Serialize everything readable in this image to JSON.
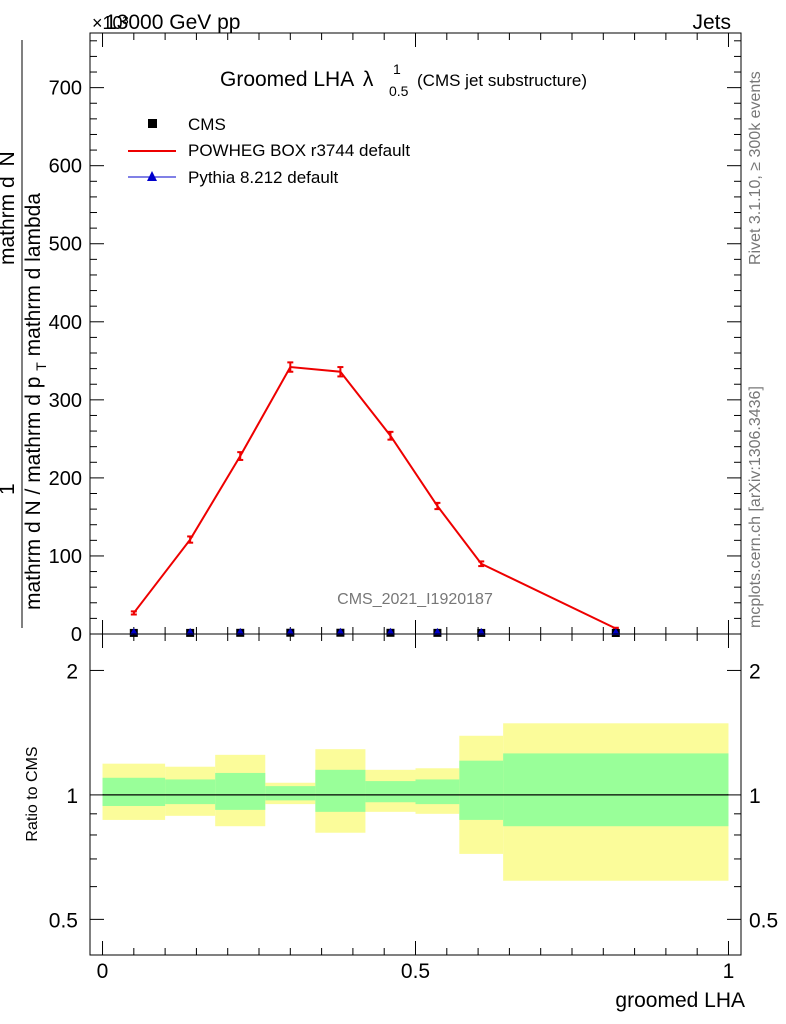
{
  "header": {
    "energy": "13000 GeV pp",
    "category": "Jets",
    "exponent": "×10³"
  },
  "chart_data": [
    {
      "type": "line",
      "title": "Groomed LHA",
      "title_symbol": "λ",
      "title_sup": "1",
      "title_sub": "0.5",
      "title_suffix": "(CMS jet substructure)",
      "xlabel": "groomed LHA",
      "ylabel_parts": [
        "1",
        "mathrm d N / mathrm d p",
        "T",
        " mathrm d lambda",
        "mathrm d",
        "N"
      ],
      "ylabel_full": "1/(mathrm d N / mathrm d p_T) mathrm d^2N / mathrm d p_T mathrm d lambda",
      "x_ticks": [
        "0",
        "0.5",
        "1"
      ],
      "y_ticks": [
        "0",
        "100",
        "200",
        "300",
        "400",
        "500",
        "600",
        "700"
      ],
      "xlim": [
        -0.02,
        1.02
      ],
      "ylim": [
        0,
        770
      ],
      "watermark": "CMS_2021_I1920187",
      "legend": [
        {
          "label": "CMS",
          "color": "#000000",
          "marker": "square"
        },
        {
          "label": "POWHEG BOX r3744 default",
          "color": "#ee0000",
          "marker": "line"
        },
        {
          "label": "Pythia 8.212 default",
          "color": "#0000cc",
          "marker": "triangle"
        }
      ],
      "series": [
        {
          "name": "POWHEG BOX r3744 default",
          "color": "#ee0000",
          "x": [
            0.05,
            0.14,
            0.22,
            0.3,
            0.38,
            0.46,
            0.535,
            0.605,
            0.82
          ],
          "values": [
            27,
            121,
            228,
            342,
            336,
            254,
            164,
            90,
            7
          ],
          "errors": [
            2,
            4,
            5,
            6,
            6,
            5,
            4,
            3,
            1
          ]
        },
        {
          "name": "CMS",
          "color": "#000000",
          "x": [
            0.05,
            0.14,
            0.22,
            0.3,
            0.38,
            0.46,
            0.535,
            0.605,
            0.82
          ],
          "values": [
            0.1,
            0.12,
            0.23,
            0.34,
            0.34,
            0.26,
            0.17,
            0.09,
            0.01
          ]
        },
        {
          "name": "Pythia 8.212 default",
          "color": "#0000cc",
          "x": [
            0.05,
            0.14,
            0.22,
            0.3,
            0.38,
            0.46,
            0.535,
            0.605,
            0.82
          ],
          "values": [
            0.1,
            0.12,
            0.23,
            0.34,
            0.34,
            0.26,
            0.17,
            0.09,
            0.01
          ]
        }
      ]
    },
    {
      "type": "area",
      "ylabel": "Ratio to CMS",
      "xlabel": "groomed LHA",
      "y_ticks": [
        "0.5",
        "1",
        "2"
      ],
      "ylim_log": [
        0.41,
        2.45
      ],
      "bins": [
        0.0,
        0.1,
        0.18,
        0.26,
        0.34,
        0.42,
        0.5,
        0.57,
        0.64,
        1.0
      ],
      "yellow_band": {
        "low": [
          0.87,
          0.89,
          0.84,
          0.95,
          0.81,
          0.91,
          0.9,
          0.72,
          0.62
        ],
        "high": [
          1.19,
          1.17,
          1.25,
          1.07,
          1.29,
          1.15,
          1.16,
          1.39,
          1.49
        ]
      },
      "green_band": {
        "low": [
          0.94,
          0.95,
          0.92,
          0.97,
          0.91,
          0.96,
          0.95,
          0.87,
          0.84
        ],
        "high": [
          1.1,
          1.09,
          1.13,
          1.05,
          1.15,
          1.08,
          1.09,
          1.21,
          1.26
        ]
      },
      "reference": 1.0
    }
  ],
  "side_labels": {
    "rivet": "Rivet 3.1.10, ≥ 300k events",
    "mcplots": "mcplots.cern.ch [arXiv:1306.3436]"
  },
  "colors": {
    "yellow": "#fbfc9a",
    "green": "#99ff99"
  }
}
